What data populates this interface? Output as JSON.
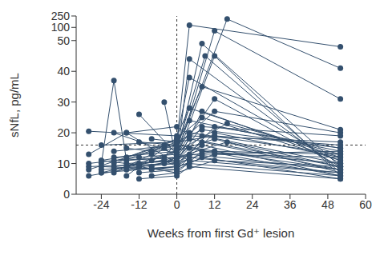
{
  "chart_data": {
    "type": "line",
    "x_label": "Weeks from first Gd⁺ lesion",
    "y_label": "sNfL, pg/mL",
    "xlim": [
      -32,
      60
    ],
    "xticks": [
      -24,
      -12,
      0,
      12,
      24,
      36,
      48,
      60
    ],
    "ylim": [
      0,
      250
    ],
    "yticks": [
      0,
      10,
      20,
      30,
      40,
      50,
      100,
      250
    ],
    "color": "#34506e",
    "marker": "circle",
    "reference_lines": [
      {
        "axis": "x",
        "value": 0,
        "line_style": "dashed"
      },
      {
        "axis": "y",
        "value": 16,
        "line_style": "dashed"
      }
    ],
    "series": [
      {
        "x": [
          -20,
          0,
          4,
          52
        ],
        "values": [
          10,
          17,
          130,
          48
        ]
      },
      {
        "x": [
          -16,
          0,
          16,
          52
        ],
        "values": [
          9,
          14,
          210,
          41
        ]
      },
      {
        "x": [
          -24,
          -20,
          -16,
          0,
          12,
          52
        ],
        "values": [
          10,
          37,
          11,
          12,
          87,
          31
        ]
      },
      {
        "x": [
          -12,
          0,
          8,
          52
        ],
        "values": [
          26,
          13,
          49,
          9
        ]
      },
      {
        "x": [
          -4,
          0,
          4,
          52
        ],
        "values": [
          30,
          11,
          44,
          8
        ]
      },
      {
        "x": [
          -24,
          0,
          9,
          52
        ],
        "values": [
          11,
          15,
          45,
          7
        ]
      },
      {
        "x": [
          -20,
          0,
          12,
          52
        ],
        "values": [
          8,
          12,
          45,
          6
        ]
      },
      {
        "x": [
          -16,
          0,
          4,
          52
        ],
        "values": [
          12,
          18,
          38,
          10
        ]
      },
      {
        "x": [
          -8,
          0,
          8,
          52
        ],
        "values": [
          14,
          16,
          35,
          21
        ]
      },
      {
        "x": [
          -28,
          0,
          4,
          52
        ],
        "values": [
          20.5,
          19,
          28,
          12
        ]
      },
      {
        "x": [
          -20,
          0,
          12,
          52
        ],
        "values": [
          20,
          13,
          31,
          9
        ]
      },
      {
        "x": [
          -16,
          0,
          8,
          52
        ],
        "values": [
          20,
          10,
          27,
          11
        ]
      },
      {
        "x": [
          -12,
          0,
          12,
          52
        ],
        "values": [
          17,
          16,
          27,
          20
        ]
      },
      {
        "x": [
          -8,
          0,
          4,
          52
        ],
        "values": [
          18,
          17,
          24,
          14
        ]
      },
      {
        "x": [
          -28,
          -16,
          0,
          4,
          52
        ],
        "values": [
          13,
          20,
          22,
          19,
          17
        ]
      },
      {
        "x": [
          -24,
          -12,
          0,
          8,
          52
        ],
        "values": [
          7,
          10,
          11,
          22,
          19
        ]
      },
      {
        "x": [
          -20,
          -8,
          0,
          12,
          52
        ],
        "values": [
          7,
          13,
          9,
          22,
          15
        ]
      },
      {
        "x": [
          -28,
          -4,
          0,
          4,
          52
        ],
        "values": [
          8,
          16,
          14,
          20,
          13
        ]
      },
      {
        "x": [
          -24,
          0,
          12,
          52
        ],
        "values": [
          9,
          8,
          20,
          12
        ]
      },
      {
        "x": [
          -16,
          -4,
          0,
          8,
          52
        ],
        "values": [
          6,
          15,
          12,
          19,
          10
        ]
      },
      {
        "x": [
          -20,
          0,
          4,
          52
        ],
        "values": [
          11,
          12,
          18,
          9
        ]
      },
      {
        "x": [
          -12,
          0,
          8,
          52
        ],
        "values": [
          9,
          10,
          17,
          8
        ]
      },
      {
        "x": [
          -8,
          0,
          12,
          52
        ],
        "values": [
          11,
          14,
          18,
          7
        ]
      },
      {
        "x": [
          -28,
          0,
          4,
          52
        ],
        "values": [
          6,
          11,
          15,
          6
        ]
      },
      {
        "x": [
          -24,
          -12,
          0,
          8,
          52
        ],
        "values": [
          8,
          9,
          7,
          14,
          10
        ]
      },
      {
        "x": [
          -16,
          0,
          12,
          52
        ],
        "values": [
          8,
          9,
          13,
          12
        ]
      },
      {
        "x": [
          -20,
          -4,
          0,
          4,
          52
        ],
        "values": [
          9,
          11,
          10,
          13,
          8
        ]
      },
      {
        "x": [
          -12,
          0,
          8,
          52
        ],
        "values": [
          7,
          8,
          12,
          5
        ]
      },
      {
        "x": [
          -8,
          0,
          12,
          52
        ],
        "values": [
          6,
          7,
          11,
          9
        ]
      },
      {
        "x": [
          -24,
          0,
          4,
          52
        ],
        "values": [
          7,
          9,
          12,
          7
        ]
      },
      {
        "x": [
          -16,
          0,
          8,
          52
        ],
        "values": [
          10,
          11,
          16,
          6
        ]
      },
      {
        "x": [
          -20,
          0,
          12,
          52
        ],
        "values": [
          14,
          16,
          14,
          13
        ]
      },
      {
        "x": [
          -28,
          -12,
          0,
          4,
          52
        ],
        "values": [
          10,
          12,
          13,
          11,
          7
        ]
      },
      {
        "x": [
          -4,
          0,
          8,
          52
        ],
        "values": [
          12,
          17,
          21,
          15
        ]
      },
      {
        "x": [
          -12,
          0,
          4,
          52
        ],
        "values": [
          5,
          6,
          9,
          5
        ]
      },
      {
        "x": [
          -24,
          0,
          12,
          52
        ],
        "values": [
          16,
          17,
          19,
          16
        ]
      },
      {
        "x": [
          -16,
          -8,
          0,
          8,
          52
        ],
        "values": [
          15,
          14,
          18,
          25,
          11
        ]
      },
      {
        "x": [
          -20,
          0,
          16,
          52
        ],
        "values": [
          12,
          14,
          23,
          13
        ]
      },
      {
        "x": [
          -8,
          0,
          4,
          52
        ],
        "values": [
          8,
          9,
          10,
          6
        ]
      },
      {
        "x": [
          -24,
          -8,
          0,
          12,
          52
        ],
        "values": [
          11,
          9,
          12,
          14,
          8
        ]
      },
      {
        "x": [
          -4,
          0,
          16,
          52
        ],
        "values": [
          10,
          12,
          17,
          9
        ]
      },
      {
        "x": [
          -28,
          0,
          8,
          52
        ],
        "values": [
          9,
          10,
          13,
          14
        ]
      }
    ]
  }
}
